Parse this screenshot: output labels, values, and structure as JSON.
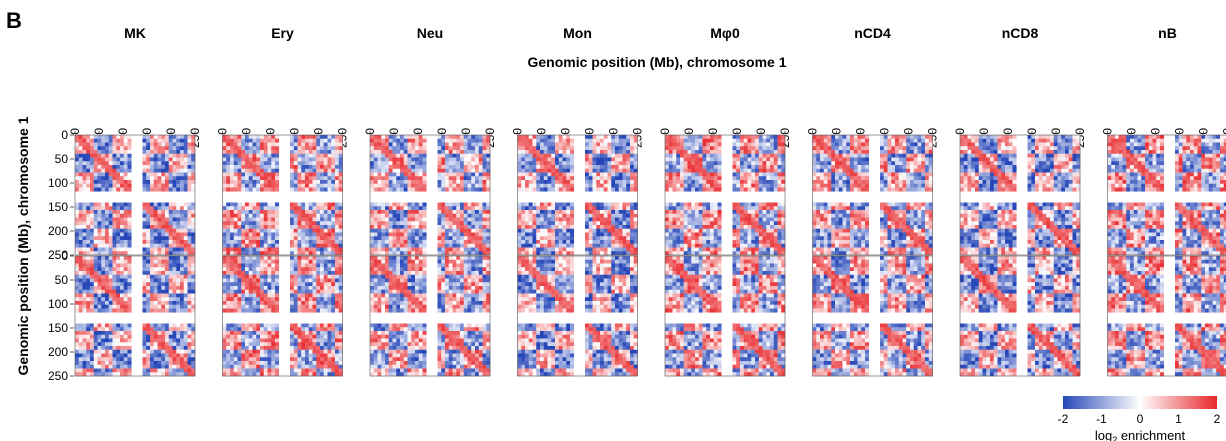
{
  "panel_label": "B",
  "x_axis_title": "Genomic position (Mb), chromosome 1",
  "y_axis_title": "Genomic position (Mb), chromosome 1",
  "colorbar": {
    "ticks": [
      "-2",
      "-1",
      "0",
      "1",
      "2"
    ],
    "label_prefix": "log",
    "label_sub": "2",
    "label_suffix": " enrichment",
    "colors": [
      "#2647b8",
      "#ffffff",
      "#e8262a"
    ]
  },
  "chart_data": {
    "type": "heatmap",
    "title": "",
    "xlabel": "Genomic position (Mb), chromosome 1",
    "ylabel": "Genomic position (Mb), chromosome 1",
    "columns": [
      "MK",
      "Ery",
      "Neu",
      "Mon",
      "Mφ0",
      "nCD4",
      "nCD8",
      "nB"
    ],
    "rows": 2,
    "x_ticks": [
      "0",
      "50",
      "100",
      "150",
      "200",
      "250"
    ],
    "y_ticks": [
      "0",
      "50",
      "100",
      "150",
      "200",
      "250"
    ],
    "xlim": [
      0,
      250
    ],
    "ylim": [
      0,
      250
    ],
    "centromere_gap_mb": [
      121,
      143
    ],
    "color_range": [
      -2,
      2
    ],
    "colorbar_label": "log2 enrichment"
  }
}
